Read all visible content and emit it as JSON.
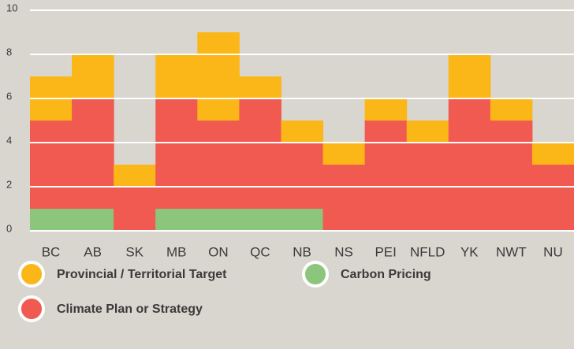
{
  "chart_data": {
    "type": "stacked_bar",
    "categories": [
      "BC",
      "AB",
      "SK",
      "MB",
      "ON",
      "QC",
      "NB",
      "NS",
      "PEI",
      "NFLD",
      "YK",
      "NWT",
      "NU"
    ],
    "series": [
      {
        "name": "Carbon Pricing",
        "color": "#8cc67c",
        "values": [
          1,
          1,
          0,
          1,
          1,
          1,
          1,
          0,
          0,
          0,
          0,
          0,
          0
        ]
      },
      {
        "name": "Climate Plan or Strategy",
        "color": "#f15a50",
        "values": [
          4,
          5,
          2,
          5,
          4,
          5,
          3,
          3,
          5,
          4,
          6,
          5,
          3
        ]
      },
      {
        "name": "Provincial / Territorial Target",
        "color": "#fbb617",
        "values": [
          2,
          2,
          1,
          2,
          4,
          1,
          1,
          1,
          1,
          1,
          2,
          1,
          1
        ]
      }
    ],
    "ylim": [
      0,
      10
    ],
    "yticks": [
      0,
      2,
      4,
      6,
      8,
      10
    ],
    "grid": true
  }
}
